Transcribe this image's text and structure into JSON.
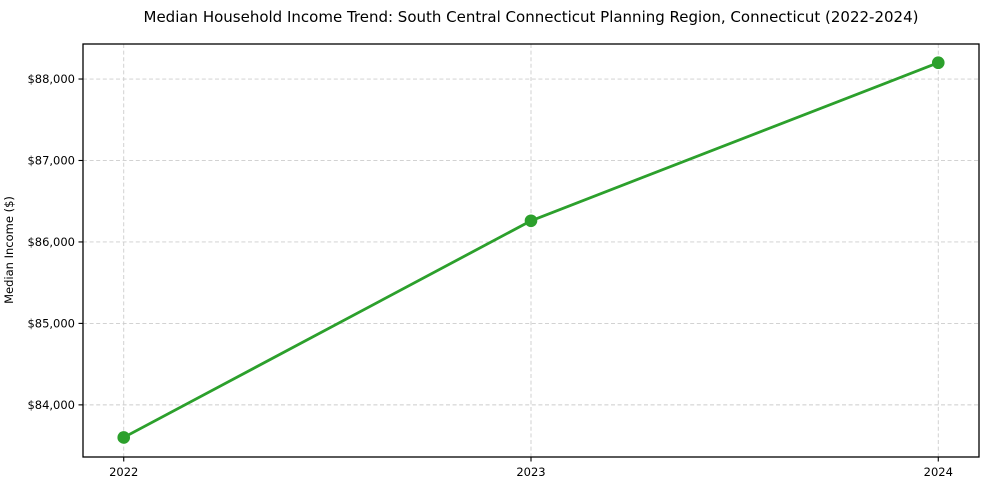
{
  "chart_data": {
    "type": "line",
    "title": "Median Household Income Trend: South Central Connecticut Planning Region, Connecticut (2022-2024)",
    "xlabel": "",
    "ylabel": "Median Income ($)",
    "x": [
      2022,
      2023,
      2024
    ],
    "categories": [
      "2022",
      "2023",
      "2024"
    ],
    "series": [
      {
        "name": "Median Household Income",
        "values": [
          83600,
          86260,
          88200
        ]
      }
    ],
    "xlim": [
      2021.9,
      2024.1
    ],
    "ylim": [
      83360,
      88430
    ],
    "xticks": [
      2022,
      2023,
      2024
    ],
    "xtick_labels": [
      "2022",
      "2023",
      "2024"
    ],
    "yticks": [
      84000,
      85000,
      86000,
      87000,
      88000
    ],
    "ytick_labels": [
      "$84,000",
      "$85,000",
      "$86,000",
      "$87,000",
      "$88,000"
    ],
    "grid": true,
    "legend": "none",
    "line_color": "#2ca02c",
    "marker_color": "#2ca02c",
    "grid_color": "#cccccc",
    "background_color": "#ffffff",
    "border_color": "#000000"
  }
}
